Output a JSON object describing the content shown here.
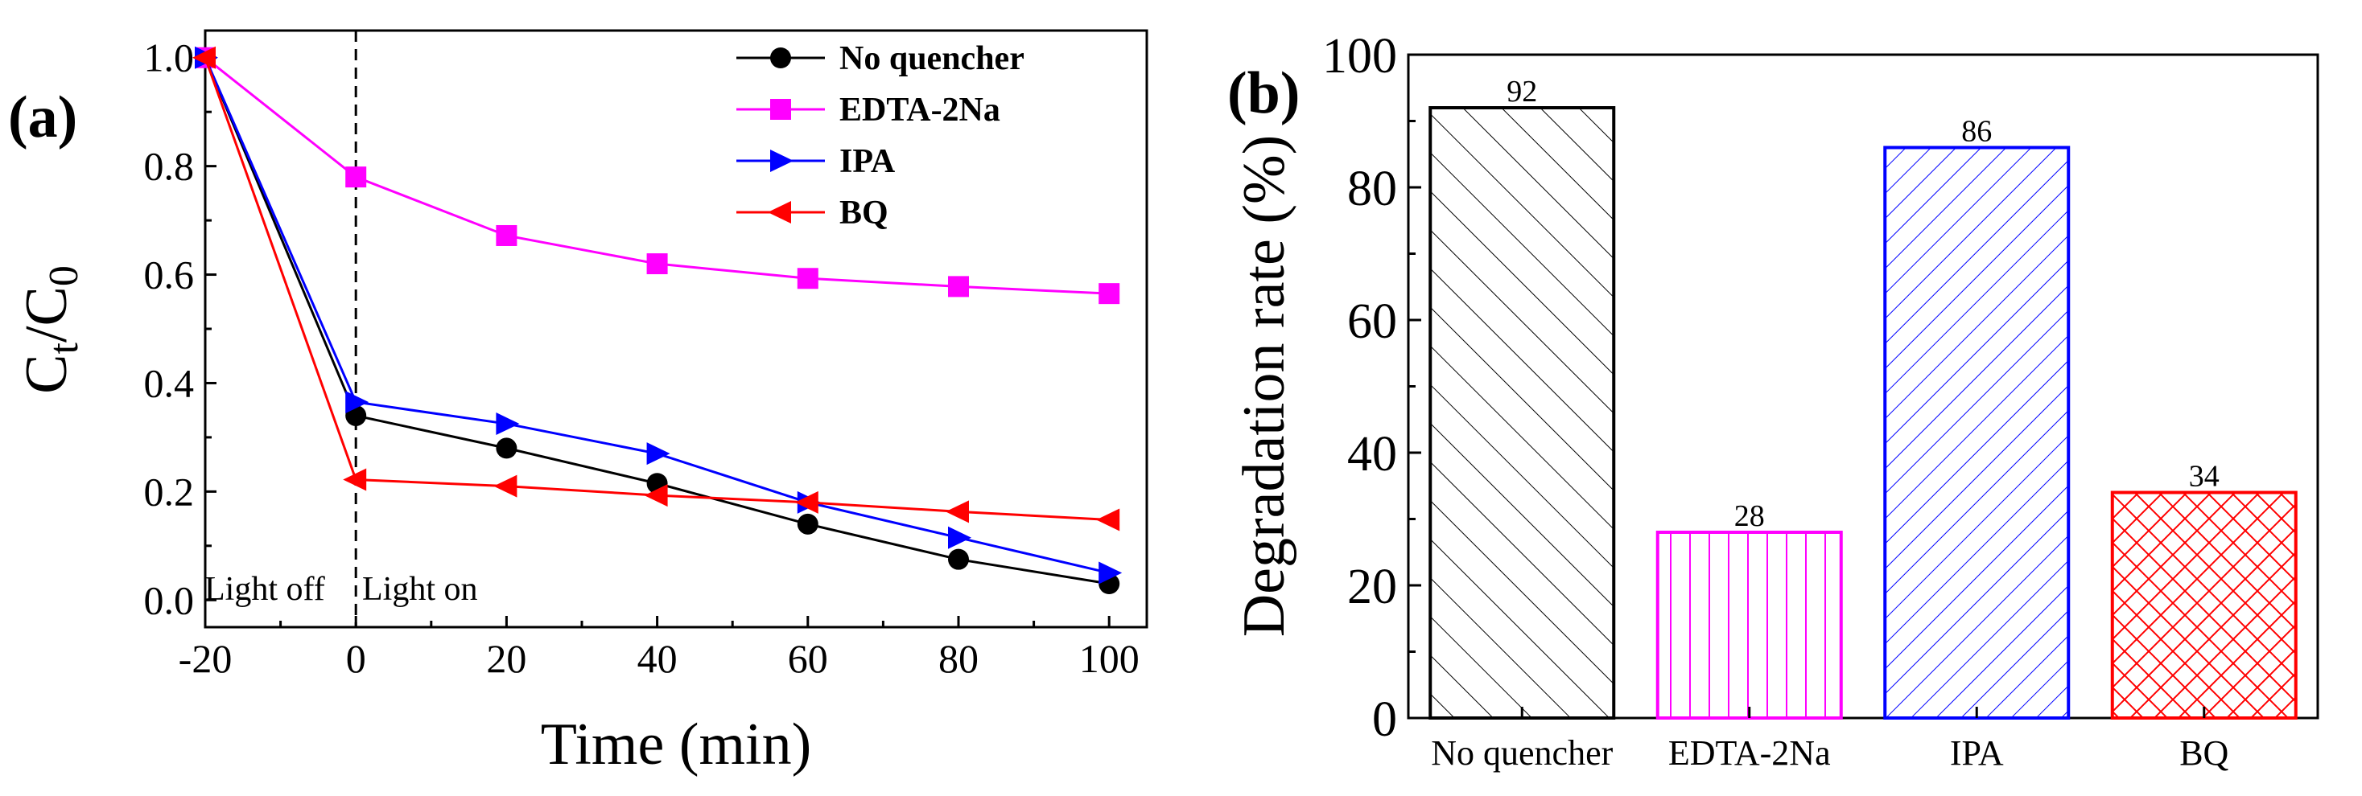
{
  "chart_data": [
    {
      "type": "line",
      "panel_label": "(a)",
      "xlabel": "Time (min)",
      "ylabel_base": "C",
      "ylabel_sub1": "t",
      "ylabel_mid": "/C",
      "ylabel_sub2": "0",
      "xlim": [
        -20,
        105
      ],
      "ylim": [
        -0.05,
        1.05
      ],
      "xticks": [
        -20,
        0,
        20,
        40,
        60,
        80,
        100
      ],
      "xtick_labels": [
        "-20",
        "0",
        "20",
        "40",
        "60",
        "80",
        "100"
      ],
      "yticks": [
        0.0,
        0.2,
        0.4,
        0.6,
        0.8,
        1.0
      ],
      "ytick_labels": [
        "0.0",
        "0.2",
        "0.4",
        "0.6",
        "0.8",
        "1.0"
      ],
      "x": [
        -20,
        0,
        20,
        40,
        60,
        80,
        100
      ],
      "series": [
        {
          "name": "No quencher",
          "color": "#000000",
          "marker": "circle",
          "values": [
            1.0,
            0.34,
            0.28,
            0.215,
            0.14,
            0.075,
            0.03
          ]
        },
        {
          "name": "EDTA-2Na",
          "color": "#ff00ff",
          "marker": "square",
          "values": [
            1.0,
            0.78,
            0.672,
            0.62,
            0.593,
            0.578,
            0.565
          ]
        },
        {
          "name": "IPA",
          "color": "#0000ff",
          "marker": "triangle-right",
          "values": [
            1.0,
            0.365,
            0.325,
            0.27,
            0.18,
            0.115,
            0.05
          ]
        },
        {
          "name": "BQ",
          "color": "#ff0000",
          "marker": "triangle-left",
          "values": [
            1.0,
            0.222,
            0.21,
            0.193,
            0.18,
            0.163,
            0.148
          ]
        }
      ],
      "vline_x": 0,
      "annotations": [
        "Light off",
        "Light on"
      ],
      "legend_position": "top-right"
    },
    {
      "type": "bar",
      "panel_label": "(b)",
      "ylabel": "Degradation rate (%)",
      "ylim": [
        0,
        100
      ],
      "yticks": [
        0,
        20,
        40,
        60,
        80,
        100
      ],
      "ytick_labels": [
        "0",
        "20",
        "40",
        "60",
        "80",
        "100"
      ],
      "categories": [
        "No quencher",
        "EDTA-2Na",
        "IPA",
        "BQ"
      ],
      "values": [
        92,
        28,
        86,
        34
      ],
      "value_labels": [
        "92",
        "28",
        "86",
        "34"
      ],
      "colors": [
        "#000000",
        "#ff00ff",
        "#0000ff",
        "#ff0000"
      ],
      "patterns": [
        "diagonal",
        "vertical",
        "diagonal-dense",
        "crosshatch"
      ]
    }
  ]
}
